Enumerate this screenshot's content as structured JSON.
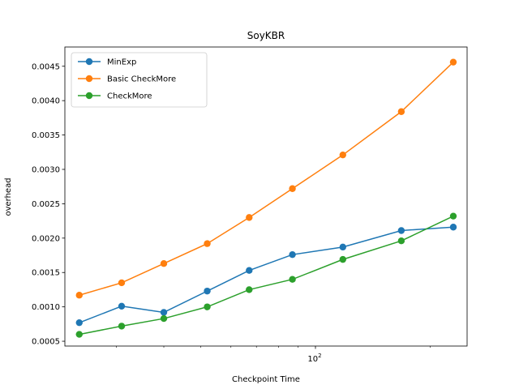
{
  "chart_data": {
    "type": "line",
    "title": "SoyKBR",
    "xlabel": "Checkpoint Time",
    "ylabel": "overhead",
    "xscale": "log",
    "xlim": [
      22,
      250
    ],
    "ylim": [
      0.00043,
      0.00478
    ],
    "y_ticks": [
      0.0005,
      0.001,
      0.0015,
      0.002,
      0.0025,
      0.003,
      0.0035,
      0.004,
      0.0045
    ],
    "y_tick_labels": [
      "0.0005",
      "0.0010",
      "0.0015",
      "0.0020",
      "0.0025",
      "0.0030",
      "0.0035",
      "0.0040",
      "0.0045"
    ],
    "x_major_ticks": [
      100
    ],
    "x_major_tick_labels": [
      "10^2"
    ],
    "x_minor_ticks": [
      30,
      40,
      50,
      60,
      70,
      80,
      90,
      200
    ],
    "legend_position": "upper-left",
    "grid": false,
    "x": [
      24,
      31,
      40,
      52,
      67,
      87,
      118,
      168,
      230
    ],
    "series": [
      {
        "name": "MinExp",
        "color": "#1f77b4",
        "values": [
          0.00077,
          0.00101,
          0.00092,
          0.00123,
          0.00153,
          0.00176,
          0.00187,
          0.00211,
          0.00216
        ]
      },
      {
        "name": "Basic CheckMore",
        "color": "#ff7f0e",
        "values": [
          0.00117,
          0.00135,
          0.00163,
          0.00192,
          0.0023,
          0.00272,
          0.00321,
          0.00384,
          0.00456
        ]
      },
      {
        "name": "CheckMore",
        "color": "#2ca02c",
        "values": [
          0.0006,
          0.00072,
          0.00083,
          0.001,
          0.00125,
          0.0014,
          0.00169,
          0.00196,
          0.00232
        ]
      }
    ]
  }
}
